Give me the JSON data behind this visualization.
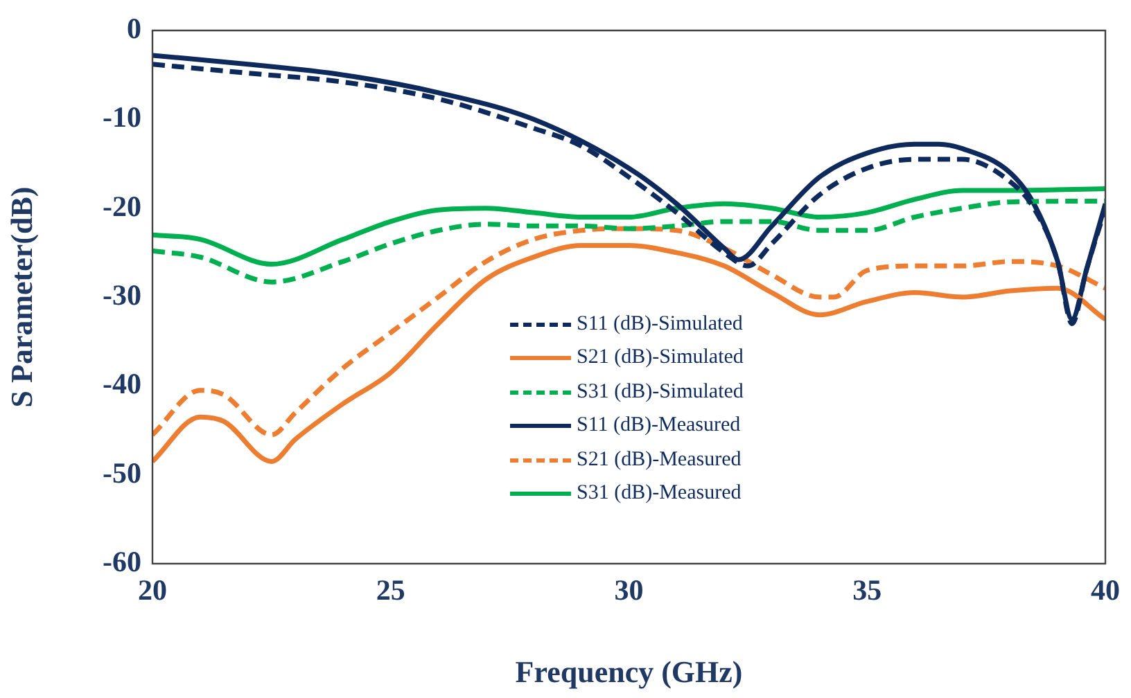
{
  "chart_data": {
    "type": "line",
    "xlabel": "Frequency (GHz)",
    "ylabel": "S Parameter(dB)",
    "xlim": [
      20,
      40
    ],
    "xticks": [
      20,
      25,
      30,
      35,
      40
    ],
    "ylim": [
      -60,
      0
    ],
    "yticks": [
      -60,
      -50,
      -40,
      -30,
      -20,
      -10,
      0
    ],
    "grid": false,
    "legend": "bottom",
    "marker": "none",
    "series": [
      {
        "name": "S11 (dB)-Simulated",
        "color": "#0e2a5c",
        "line_style": "dashed",
        "x": [
          20,
          22,
          24,
          26,
          28,
          29,
          30,
          31,
          32,
          32.5,
          33,
          34,
          35,
          36,
          37,
          38,
          38.5,
          39,
          39.3,
          39.6,
          40
        ],
        "values": [
          -3.8,
          -4.8,
          -5.8,
          -7.7,
          -11,
          -13,
          -16.5,
          -20.5,
          -25,
          -26.5,
          -24,
          -18.5,
          -15.5,
          -14.5,
          -14.5,
          -17,
          -20,
          -26,
          -33,
          -27,
          -20
        ]
      },
      {
        "name": "S21 (dB)-Simulated",
        "color": "#ed7d31",
        "line_style": "solid",
        "x": [
          20,
          21,
          21.5,
          22.5,
          23,
          24,
          25,
          26,
          27,
          28,
          29,
          30,
          31,
          32,
          33,
          34,
          35,
          36,
          37,
          38,
          39,
          40
        ],
        "values": [
          -48.5,
          -43.5,
          -44,
          -48.5,
          -46,
          -42,
          -38.5,
          -33,
          -28,
          -25.5,
          -24.2,
          -24.2,
          -25,
          -26.5,
          -29.5,
          -32,
          -30.5,
          -29.5,
          -30,
          -29.3,
          -29,
          -32.5
        ]
      },
      {
        "name": "S31 (dB)-Simulated",
        "color": "#00b050",
        "line_style": "dashed",
        "x": [
          20,
          21,
          22.5,
          24,
          25,
          26,
          27,
          28,
          29,
          30,
          31,
          32,
          33,
          34,
          35,
          36,
          37,
          38,
          40
        ],
        "values": [
          -24.8,
          -25.5,
          -28.3,
          -26,
          -24,
          -22.5,
          -21.8,
          -22,
          -22,
          -22.3,
          -22,
          -21.5,
          -21.5,
          -22.5,
          -22.5,
          -21,
          -20,
          -19.3,
          -19.2
        ]
      },
      {
        "name": "S11 (dB)-Measured",
        "color": "#0e2a5c",
        "line_style": "solid",
        "x": [
          20,
          22,
          24,
          26,
          28,
          30,
          31,
          32,
          32.3,
          33,
          34,
          35,
          36,
          36.5,
          37,
          38,
          38.5,
          39,
          39.3,
          39.6,
          40
        ],
        "values": [
          -2.8,
          -3.8,
          -5,
          -7,
          -10,
          -15.5,
          -19.5,
          -24.5,
          -25.8,
          -22,
          -16.5,
          -13.8,
          -12.8,
          -12.8,
          -13.3,
          -16,
          -19.5,
          -26,
          -32.5,
          -27,
          -19.5
        ]
      },
      {
        "name": "S21 (dB)-Measured",
        "color": "#ed7d31",
        "line_style": "dashed",
        "x": [
          20,
          21,
          21.5,
          22.5,
          23,
          24,
          25,
          26,
          27,
          28,
          29,
          30,
          31,
          32,
          33,
          34,
          34.3,
          35,
          36,
          37,
          38,
          39,
          40
        ],
        "values": [
          -45.5,
          -40.5,
          -41,
          -45.5,
          -43,
          -38,
          -34,
          -30,
          -26,
          -23.5,
          -22.5,
          -22.3,
          -22.5,
          -24.5,
          -27.5,
          -30,
          -30,
          -27,
          -26.5,
          -26.5,
          -26,
          -26.5,
          -29
        ]
      },
      {
        "name": "S31 (dB)-Measured",
        "color": "#00b050",
        "line_style": "solid",
        "x": [
          20,
          21,
          22.5,
          24,
          25,
          26,
          27,
          28,
          29,
          30,
          31,
          32,
          33,
          34,
          35,
          36,
          37,
          38,
          40
        ],
        "values": [
          -23,
          -23.5,
          -26.3,
          -23.5,
          -21.5,
          -20.2,
          -20,
          -20.5,
          -21,
          -21,
          -20,
          -19.5,
          -20,
          -21,
          -20.5,
          -19,
          -18,
          -18,
          -17.8
        ]
      }
    ]
  }
}
